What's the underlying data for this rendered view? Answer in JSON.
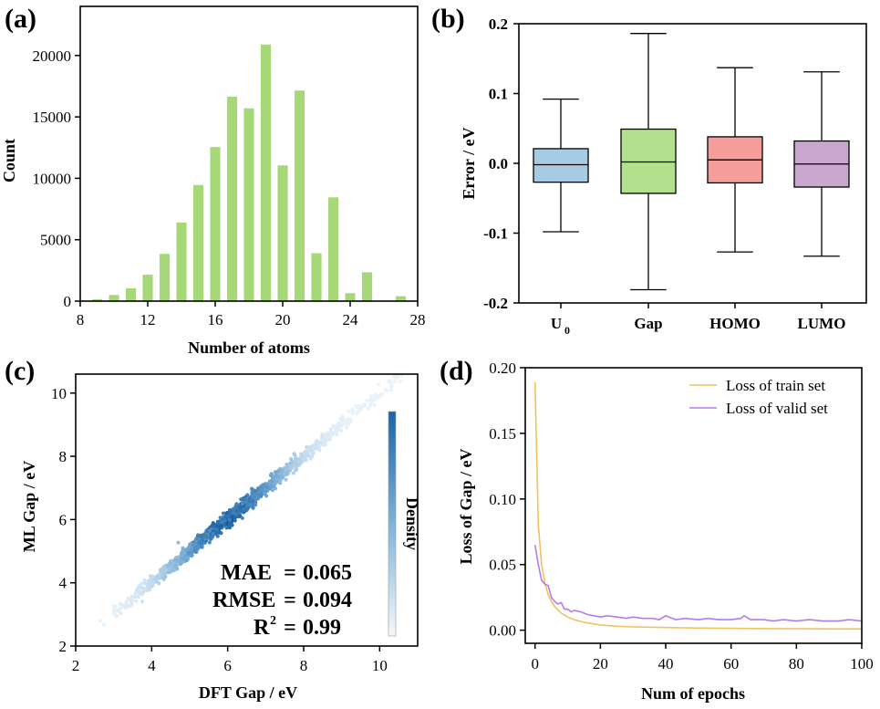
{
  "panels": {
    "a": {
      "label": "(a)"
    },
    "b": {
      "label": "(b)"
    },
    "c": {
      "label": "(c)"
    },
    "d": {
      "label": "(d)"
    }
  },
  "chart_data": [
    {
      "id": "a",
      "type": "bar",
      "title": "",
      "xlabel": "Number of atoms",
      "ylabel": "Count",
      "xlim": [
        8,
        28
      ],
      "ylim": [
        0,
        24000
      ],
      "xticks": [
        "8",
        "12",
        "16",
        "20",
        "24",
        "28"
      ],
      "yticks": [
        "0",
        "5000",
        "10000",
        "15000",
        "20000"
      ],
      "bar_color": "#a6d878",
      "categories": [
        9,
        10,
        11,
        12,
        13,
        14,
        15,
        16,
        17,
        18,
        19,
        20,
        21,
        22,
        23,
        24,
        25,
        27
      ],
      "values": [
        150,
        500,
        1050,
        2150,
        3850,
        6400,
        9450,
        12550,
        16650,
        15700,
        20900,
        11050,
        17150,
        3900,
        8450,
        650,
        2350,
        400
      ]
    },
    {
      "id": "b",
      "type": "box",
      "xlabel": "",
      "ylabel": "Error / eV",
      "ylim": [
        -0.2,
        0.2
      ],
      "yticks": [
        "-0.2",
        "-0.1",
        "0.0",
        "0.1",
        "0.2"
      ],
      "categories": [
        "U",
        "Gap",
        "HOMO",
        "LUMO"
      ],
      "category_subscripts": [
        "0",
        "",
        "",
        ""
      ],
      "boxes": [
        {
          "name": "U0",
          "min": -0.098,
          "q1": -0.027,
          "median": -0.002,
          "q3": 0.021,
          "max": 0.092,
          "color": "#a7cbe3"
        },
        {
          "name": "Gap",
          "min": -0.181,
          "q1": -0.043,
          "median": 0.002,
          "q3": 0.049,
          "max": 0.186,
          "color": "#b3e08d"
        },
        {
          "name": "HOMO",
          "min": -0.127,
          "q1": -0.028,
          "median": 0.005,
          "q3": 0.038,
          "max": 0.137,
          "color": "#f59e9b"
        },
        {
          "name": "LUMO",
          "min": -0.133,
          "q1": -0.034,
          "median": -0.001,
          "q3": 0.032,
          "max": 0.131,
          "color": "#c9a7cf"
        }
      ]
    },
    {
      "id": "c",
      "type": "scatter",
      "xlabel": "DFT Gap / eV",
      "ylabel": "ML Gap / eV",
      "xlim": [
        2,
        11
      ],
      "ylim": [
        2,
        10.6
      ],
      "xticks": [
        "2",
        "4",
        "6",
        "8",
        "10"
      ],
      "yticks": [
        "2",
        "4",
        "6",
        "8",
        "10"
      ],
      "colorbar_label": "Density",
      "stats": [
        {
          "name": "MAE",
          "value": "0.065"
        },
        {
          "name": "RMSE",
          "value": "0.094"
        },
        {
          "name": "R",
          "sup": "2",
          "value": "0.99"
        }
      ],
      "relation": "y ≈ x",
      "x_range_of_points": [
        2.5,
        10.8
      ],
      "peak_density_x": 6.0
    },
    {
      "id": "d",
      "type": "line",
      "xlabel": "Num of epochs",
      "ylabel": "Loss of Gap / eV",
      "xlim": [
        -3,
        100
      ],
      "ylim": [
        -0.01,
        0.2
      ],
      "xticks": [
        "0",
        "20",
        "40",
        "60",
        "80",
        "100"
      ],
      "yticks": [
        "0.00",
        "0.05",
        "0.10",
        "0.15",
        "0.20"
      ],
      "legend_position": "top-right",
      "series": [
        {
          "name": "Loss of train set",
          "color": "#f2c05c",
          "x": [
            0,
            1,
            2,
            3,
            4,
            5,
            6,
            8,
            10,
            12,
            15,
            20,
            25,
            30,
            40,
            50,
            60,
            70,
            80,
            90,
            100
          ],
          "values": [
            0.189,
            0.08,
            0.05,
            0.036,
            0.027,
            0.022,
            0.018,
            0.013,
            0.01,
            0.008,
            0.006,
            0.004,
            0.003,
            0.0025,
            0.002,
            0.0016,
            0.0014,
            0.0012,
            0.0011,
            0.001,
            0.001
          ]
        },
        {
          "name": "Loss of valid set",
          "color": "#b57af0",
          "x": [
            0,
            1,
            2,
            3,
            4,
            5,
            6,
            7,
            8,
            9,
            10,
            11,
            12,
            14,
            16,
            18,
            20,
            22,
            25,
            28,
            30,
            33,
            36,
            38,
            40,
            43,
            46,
            50,
            53,
            56,
            60,
            63,
            64,
            66,
            70,
            73,
            76,
            80,
            84,
            88,
            90,
            93,
            96,
            100
          ],
          "values": [
            0.065,
            0.05,
            0.038,
            0.035,
            0.034,
            0.025,
            0.022,
            0.02,
            0.021,
            0.016,
            0.016,
            0.014,
            0.015,
            0.014,
            0.012,
            0.011,
            0.01,
            0.011,
            0.01,
            0.009,
            0.01,
            0.009,
            0.009,
            0.008,
            0.011,
            0.008,
            0.009,
            0.008,
            0.009,
            0.008,
            0.008,
            0.009,
            0.011,
            0.008,
            0.008,
            0.007,
            0.008,
            0.007,
            0.008,
            0.007,
            0.007,
            0.007,
            0.008,
            0.007
          ]
        }
      ]
    }
  ]
}
